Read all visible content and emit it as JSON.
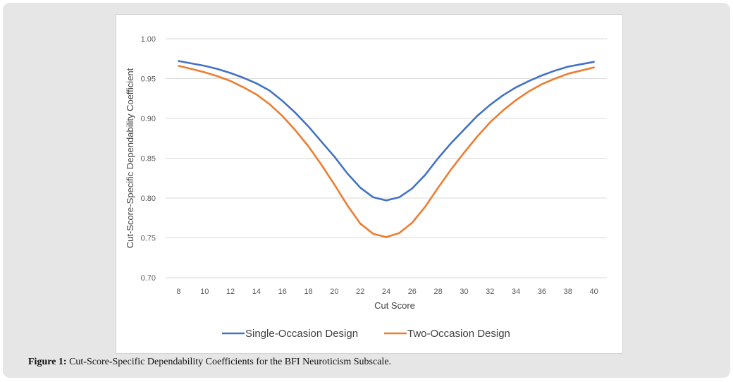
{
  "caption": {
    "label": "Figure 1:",
    "text": "Cut-Score-Specific Dependability Coefficients for the BFI Neuroticism Subscale."
  },
  "chart_data": {
    "type": "line",
    "title": "",
    "xlabel": "Cut Score",
    "ylabel": "Cut-Score-Specific Dependability Coefficient",
    "xlim": [
      7,
      41
    ],
    "ylim": [
      0.7,
      1.0
    ],
    "xticks": [
      8,
      10,
      12,
      14,
      16,
      18,
      20,
      22,
      24,
      26,
      28,
      30,
      32,
      34,
      36,
      38,
      40
    ],
    "yticks": [
      "0.70",
      "0.75",
      "0.80",
      "0.85",
      "0.90",
      "0.95",
      "1.00"
    ],
    "grid": true,
    "legend_position": "bottom",
    "x": [
      8,
      9,
      10,
      11,
      12,
      13,
      14,
      15,
      16,
      17,
      18,
      19,
      20,
      21,
      22,
      23,
      24,
      25,
      26,
      27,
      28,
      29,
      30,
      31,
      32,
      33,
      34,
      35,
      36,
      37,
      38,
      39,
      40
    ],
    "series": [
      {
        "name": "Single-Occasion Design",
        "color": "#4472C4",
        "values": [
          0.972,
          0.969,
          0.966,
          0.962,
          0.957,
          0.951,
          0.944,
          0.935,
          0.922,
          0.907,
          0.89,
          0.871,
          0.852,
          0.831,
          0.813,
          0.801,
          0.797,
          0.801,
          0.812,
          0.829,
          0.85,
          0.869,
          0.886,
          0.903,
          0.917,
          0.929,
          0.939,
          0.947,
          0.954,
          0.96,
          0.965,
          0.968,
          0.971
        ]
      },
      {
        "name": "Two-Occasion Design",
        "color": "#ED7D31",
        "values": [
          0.966,
          0.962,
          0.958,
          0.953,
          0.947,
          0.939,
          0.93,
          0.918,
          0.903,
          0.885,
          0.865,
          0.842,
          0.817,
          0.791,
          0.768,
          0.755,
          0.751,
          0.756,
          0.769,
          0.789,
          0.813,
          0.836,
          0.857,
          0.877,
          0.895,
          0.91,
          0.923,
          0.934,
          0.943,
          0.95,
          0.956,
          0.96,
          0.964
        ]
      }
    ]
  }
}
